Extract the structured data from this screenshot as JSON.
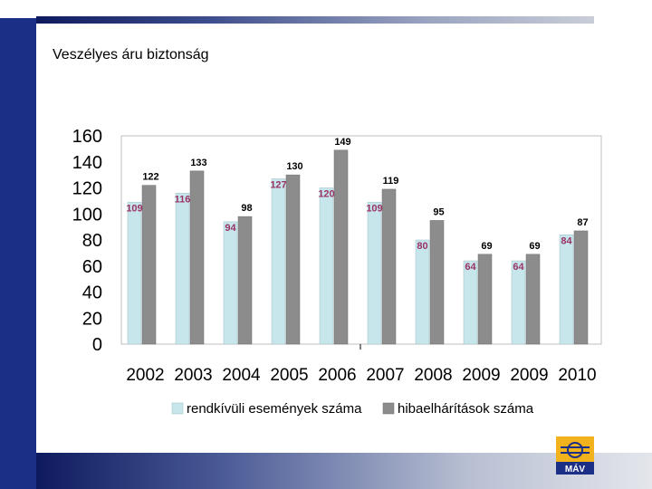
{
  "slide": {
    "title": "Veszélyes áru biztonság",
    "logo_text": "MÁV"
  },
  "colors": {
    "brand_blue": "#1c2f86",
    "series_1_fill": "#c6e6ec",
    "series_2_fill": "#8c8c8c",
    "series_1_label": "#993366",
    "series_2_label": "#000000",
    "logo_yellow": "#f2b21b"
  },
  "chart_data": {
    "type": "bar",
    "title": "",
    "xlabel": "",
    "ylabel": "",
    "ylim": [
      0,
      160
    ],
    "yticks": [
      "0",
      "20",
      "40",
      "60",
      "80",
      "100",
      "120",
      "140",
      "160"
    ],
    "grid": false,
    "legend_position": "bottom",
    "categories": [
      "2002",
      "2003",
      "2004",
      "2005",
      "2006",
      "2007",
      "2008",
      "2009",
      "2009",
      "2010"
    ],
    "series": [
      {
        "name": "rendkívüli események száma",
        "values": [
          109,
          116,
          94,
          127,
          120,
          109,
          80,
          64,
          64,
          84
        ]
      },
      {
        "name": "hibaelhárítások száma",
        "values": [
          122,
          133,
          98,
          130,
          149,
          119,
          95,
          69,
          69,
          87
        ]
      }
    ]
  }
}
